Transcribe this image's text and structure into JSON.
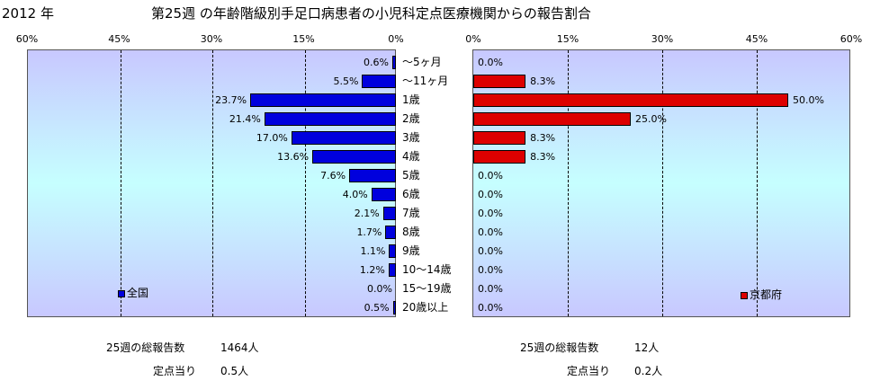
{
  "header": {
    "year": "2012 年",
    "title": "第25週 の年齢階級別手足口病患者の小児科定点医療機関からの報告割合"
  },
  "chart_data": [
    {
      "type": "bar",
      "orientation": "horizontal",
      "x_direction": "reversed",
      "xlim": [
        0,
        60
      ],
      "ticks": [
        "60%",
        "45%",
        "30%",
        "15%",
        "0%"
      ],
      "tick_values": [
        60,
        45,
        30,
        15,
        0
      ],
      "legend": "全国",
      "legend_position": "bottom-left",
      "color": "#0000dd",
      "categories": [
        "～5ヶ月",
        "～11ヶ月",
        "1歳",
        "2歳",
        "3歳",
        "4歳",
        "5歳",
        "6歳",
        "7歳",
        "8歳",
        "9歳",
        "10～14歳",
        "15～19歳",
        "20歳以上"
      ],
      "values": [
        0.6,
        5.5,
        23.7,
        21.4,
        17.0,
        13.6,
        7.6,
        4.0,
        2.1,
        1.7,
        1.1,
        1.2,
        0.0,
        0.5
      ],
      "labels": [
        "0.6%",
        "5.5%",
        "23.7%",
        "21.4%",
        "17.0%",
        "13.6%",
        "7.6%",
        "4.0%",
        "2.1%",
        "1.7%",
        "1.1%",
        "1.2%",
        "0.0%",
        "0.5%"
      ]
    },
    {
      "type": "bar",
      "orientation": "horizontal",
      "xlim": [
        0,
        60
      ],
      "ticks": [
        "0%",
        "15%",
        "30%",
        "45%",
        "60%"
      ],
      "tick_values": [
        0,
        15,
        30,
        45,
        60
      ],
      "legend": "京都府",
      "legend_position": "bottom-right",
      "color": "#dd0000",
      "categories": [
        "～5ヶ月",
        "～11ヶ月",
        "1歳",
        "2歳",
        "3歳",
        "4歳",
        "5歳",
        "6歳",
        "7歳",
        "8歳",
        "9歳",
        "10～14歳",
        "15～19歳",
        "20歳以上"
      ],
      "values": [
        0.0,
        8.3,
        50.0,
        25.0,
        8.3,
        8.3,
        0.0,
        0.0,
        0.0,
        0.0,
        0.0,
        0.0,
        0.0,
        0.0
      ],
      "labels": [
        "0.0%",
        "8.3%",
        "50.0%",
        "25.0%",
        "8.3%",
        "8.3%",
        "0.0%",
        "0.0%",
        "0.0%",
        "0.0%",
        "0.0%",
        "0.0%",
        "0.0%",
        "0.0%"
      ]
    }
  ],
  "stats": {
    "national": {
      "total_label": "25週の総報告数",
      "total_value": "1464人",
      "per_label": "定点当り",
      "per_value": "0.5人"
    },
    "kyoto": {
      "total_label": "25週の総報告数",
      "total_value": "12人",
      "per_label": "定点当り",
      "per_value": "0.2人"
    }
  }
}
